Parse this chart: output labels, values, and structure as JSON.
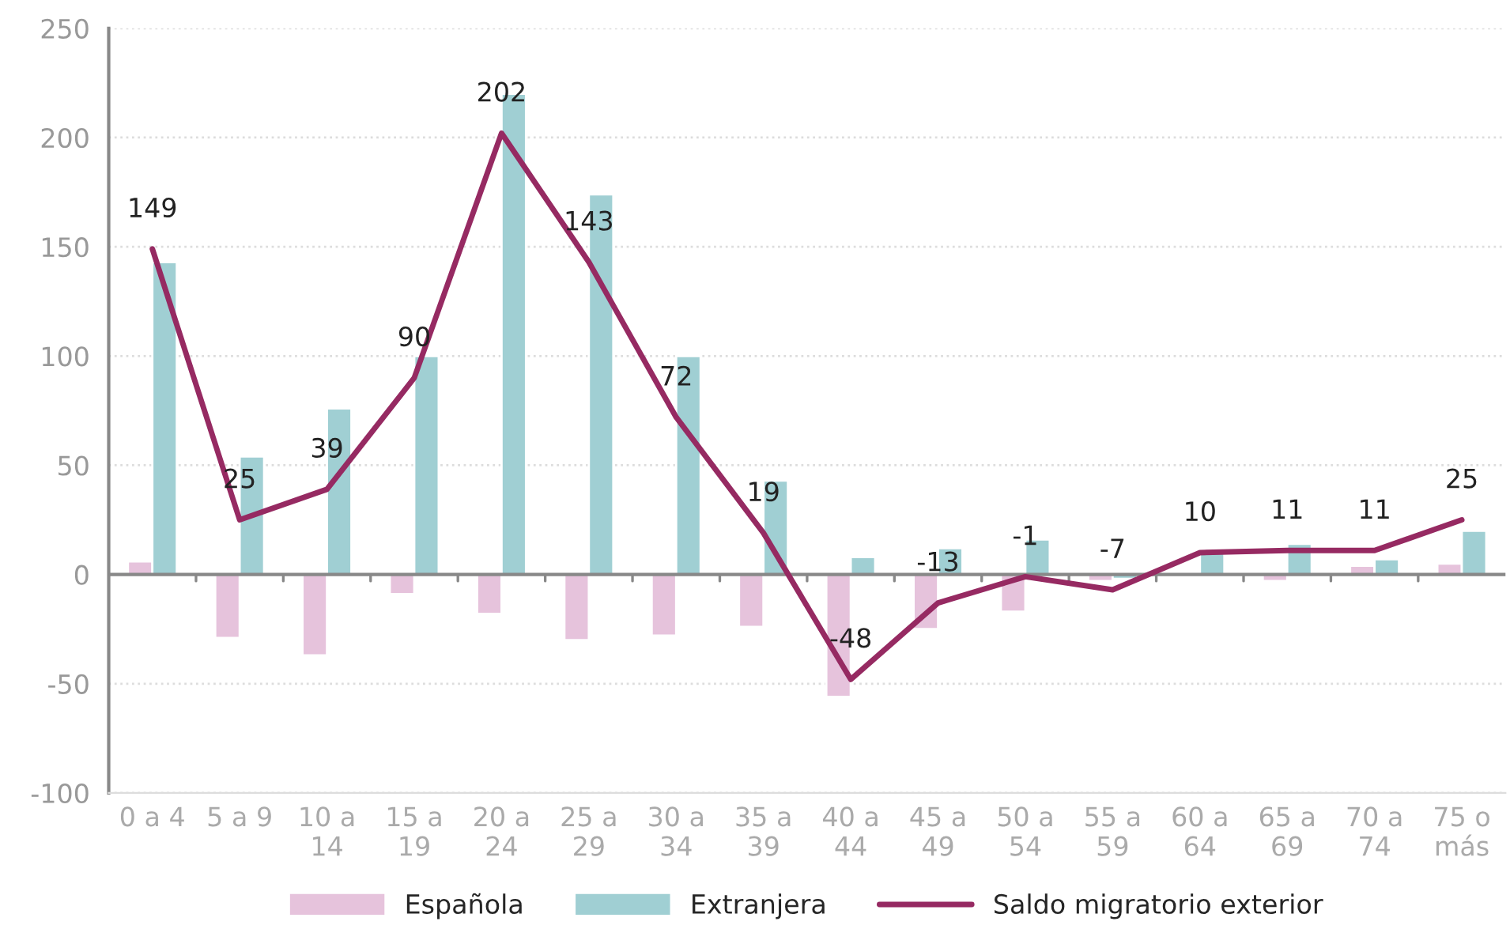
{
  "chart_data": {
    "type": "bar",
    "categories": [
      "0 a 4",
      "5 a 9",
      "10 a\n14",
      "15 a\n19",
      "20 a\n24",
      "25 a\n29",
      "30 a\n34",
      "35 a\n39",
      "40 a\n44",
      "45 a\n49",
      "50 a\n54",
      "55 a\n59",
      "60 a\n64",
      "65 a\n69",
      "70 a\n74",
      "75 o\nmás"
    ],
    "series": [
      {
        "name": "Española",
        "color": "#e6c3dc",
        "values": [
          6,
          -29,
          -37,
          -9,
          -18,
          -30,
          -28,
          -24,
          -56,
          -25,
          -17,
          -3,
          null,
          -3,
          4,
          5
        ]
      },
      {
        "name": "Extranjera",
        "color": "#a0cfd3",
        "values": [
          143,
          54,
          76,
          100,
          220,
          174,
          100,
          43,
          8,
          12,
          16,
          -2,
          10,
          14,
          7,
          20
        ]
      },
      {
        "name": "Saldo migratorio exterior",
        "type": "line",
        "color": "#962a62",
        "values": [
          149,
          25,
          39,
          90,
          202,
          143,
          72,
          19,
          -48,
          -13,
          -1,
          -7,
          10,
          11,
          11,
          25
        ],
        "value_labels": [
          "149",
          "25",
          "39",
          "90",
          "202",
          "143",
          "72",
          "19",
          "-48",
          "-13",
          "-1",
          "-7",
          "10",
          "11",
          "11",
          "25"
        ]
      }
    ],
    "ylim": [
      -100,
      250
    ],
    "yticks": [
      -100,
      -50,
      0,
      50,
      100,
      150,
      200,
      250
    ],
    "grid": "y",
    "legend": "bottom",
    "marker": "none",
    "line_style": "solid"
  }
}
